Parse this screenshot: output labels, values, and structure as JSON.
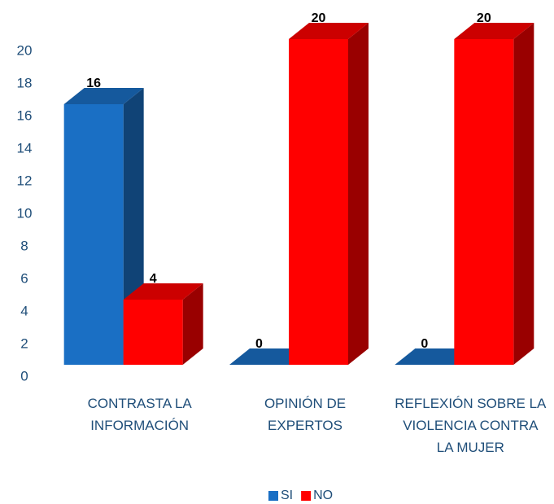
{
  "chart_data": {
    "type": "bar3d",
    "categories": [
      "CONTRASTA LA INFORMACIÓN",
      "OPINIÓN DE EXPERTOS",
      "REFLEXIÓN SOBRE LA VIOLENCIA CONTRA LA MUJER"
    ],
    "series": [
      {
        "name": "SI",
        "color": "#1a6fc4",
        "values": [
          16,
          0,
          0
        ]
      },
      {
        "name": "NO",
        "color": "#ff0000",
        "values": [
          4,
          20,
          20
        ]
      }
    ],
    "ylim": [
      0,
      20
    ],
    "yticks": [
      0,
      2,
      4,
      6,
      8,
      10,
      12,
      14,
      16,
      18,
      20
    ],
    "legend": "bottom"
  }
}
